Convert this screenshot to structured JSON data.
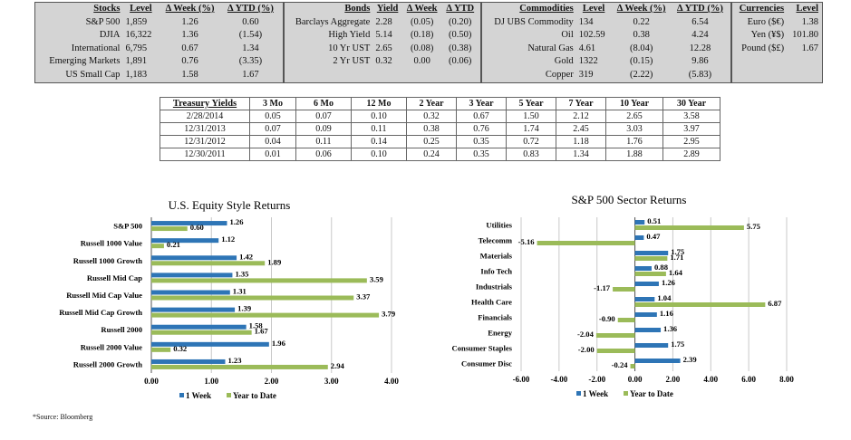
{
  "stocks": {
    "headers": [
      "Stocks",
      "Level",
      "Δ Week (%)",
      "Δ YTD (%)"
    ],
    "rows": [
      [
        "S&P 500",
        "1,859",
        "1.26",
        "0.60"
      ],
      [
        "DJIA",
        "16,322",
        "1.36",
        "(1.54)"
      ],
      [
        "International",
        "6,795",
        "0.67",
        "1.34"
      ],
      [
        "Emerging Markets",
        "1,891",
        "0.76",
        "(3.35)"
      ],
      [
        "US Small Cap",
        "1,183",
        "1.58",
        "1.67"
      ]
    ]
  },
  "bonds": {
    "headers": [
      "Bonds",
      "Yield",
      "Δ Week",
      "Δ YTD"
    ],
    "rows": [
      [
        "Barclays Aggregate",
        "2.28",
        "(0.05)",
        "(0.20)"
      ],
      [
        "High Yield",
        "5.14",
        "(0.18)",
        "(0.50)"
      ],
      [
        "10 Yr UST",
        "2.65",
        "(0.08)",
        "(0.38)"
      ],
      [
        "2 Yr UST",
        "0.32",
        "0.00",
        "(0.06)"
      ]
    ]
  },
  "commodities": {
    "headers": [
      "Commodities",
      "Level",
      "Δ Week (%)",
      "Δ YTD (%)"
    ],
    "rows": [
      [
        "DJ UBS Commodity",
        "134",
        "0.22",
        "6.54"
      ],
      [
        "Oil",
        "102.59",
        "0.38",
        "4.24"
      ],
      [
        "Natural Gas",
        "4.61",
        "(8.04)",
        "12.28"
      ],
      [
        "Gold",
        "1322",
        "(0.15)",
        "9.86"
      ],
      [
        "Copper",
        "319",
        "(2.22)",
        "(5.83)"
      ]
    ]
  },
  "currencies": {
    "headers": [
      "Currencies",
      "Level"
    ],
    "rows": [
      [
        "Euro ($€)",
        "1.38"
      ],
      [
        "Yen (¥$)",
        "101.80"
      ],
      [
        "Pound ($£)",
        "1.67"
      ]
    ]
  },
  "treasury": {
    "headers": [
      "Treasury Yields",
      "3 Mo",
      "6 Mo",
      "12 Mo",
      "2 Year",
      "3 Year",
      "5 Year",
      "7 Year",
      "10 Year",
      "30 Year"
    ],
    "rows": [
      [
        "2/28/2014",
        "0.05",
        "0.07",
        "0.10",
        "0.32",
        "0.67",
        "1.50",
        "2.12",
        "2.65",
        "3.58"
      ],
      [
        "12/31/2013",
        "0.07",
        "0.09",
        "0.11",
        "0.38",
        "0.76",
        "1.74",
        "2.45",
        "3.03",
        "3.97"
      ],
      [
        "12/31/2012",
        "0.04",
        "0.11",
        "0.14",
        "0.25",
        "0.35",
        "0.72",
        "1.18",
        "1.76",
        "2.95"
      ],
      [
        "12/30/2011",
        "0.01",
        "0.06",
        "0.10",
        "0.24",
        "0.35",
        "0.83",
        "1.34",
        "1.88",
        "2.89"
      ]
    ]
  },
  "source": "*Source: Bloomberg",
  "colors": {
    "week": "#2e75b6",
    "ytd": "#9bbb59"
  },
  "chart_data": [
    {
      "type": "bar",
      "orientation": "horizontal",
      "title": "U.S. Equity Style Returns",
      "categories": [
        "S&P 500",
        "Russell 1000 Value",
        "Russell 1000 Growth",
        "Russell Mid Cap",
        "Russell Mid Cap Value",
        "Russell Mid Cap Growth",
        "Russell 2000",
        "Russell 2000 Value",
        "Russell 2000 Growth"
      ],
      "series": [
        {
          "name": "1 Week",
          "values": [
            1.26,
            1.12,
            1.42,
            1.35,
            1.31,
            1.39,
            1.58,
            1.96,
            1.23
          ]
        },
        {
          "name": "Year to Date",
          "values": [
            0.6,
            0.21,
            1.89,
            3.59,
            3.37,
            3.79,
            1.67,
            0.32,
            2.94
          ]
        }
      ],
      "xlim": [
        0,
        4
      ],
      "xticks": [
        "0.00",
        "1.00",
        "2.00",
        "3.00",
        "4.00"
      ],
      "grid": true,
      "legend": "bottom"
    },
    {
      "type": "bar",
      "orientation": "horizontal",
      "title": "S&P 500 Sector Returns",
      "categories": [
        "Utilities",
        "Telecomm",
        "Materials",
        "Info Tech",
        "Industrials",
        "Health Care",
        "Financials",
        "Energy",
        "Consumer Staples",
        "Consumer Disc"
      ],
      "series": [
        {
          "name": "1 Week",
          "values": [
            0.51,
            0.47,
            1.75,
            0.88,
            1.26,
            1.04,
            1.16,
            1.36,
            1.75,
            2.39
          ]
        },
        {
          "name": "Year to Date",
          "values": [
            5.75,
            -5.16,
            1.71,
            1.64,
            -1.17,
            6.87,
            -0.9,
            -2.04,
            -2.0,
            -0.24
          ]
        }
      ],
      "xlim": [
        -6,
        8
      ],
      "xticks": [
        "-6.00",
        "-4.00",
        "-2.00",
        "0.00",
        "2.00",
        "4.00",
        "6.00",
        "8.00"
      ],
      "grid": true,
      "legend": "bottom"
    }
  ]
}
